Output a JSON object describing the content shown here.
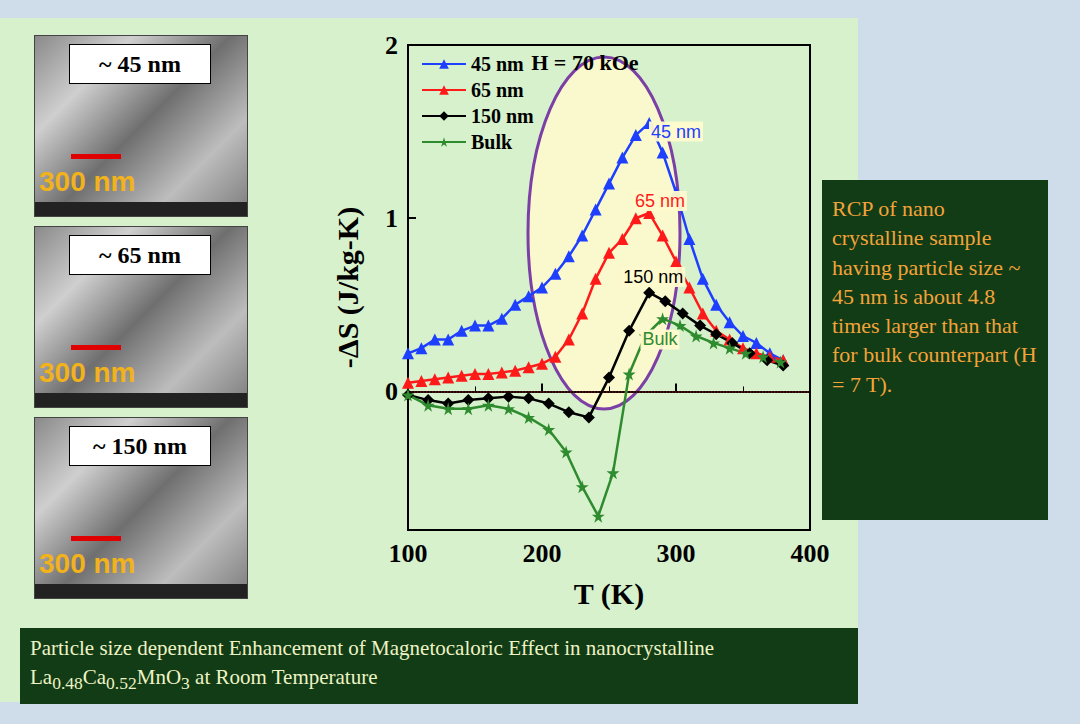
{
  "chart_data": {
    "type": "line",
    "xlabel": "T (K)",
    "ylabel": "-ΔS (J/kg-K)",
    "xlim": [
      100,
      400
    ],
    "xticks": [
      100,
      200,
      300,
      400
    ],
    "ylim": [
      -0.8,
      2
    ],
    "yticks": [
      0,
      1,
      2
    ],
    "grid": false,
    "legend": "top-left",
    "reference_line": {
      "y": 0,
      "line_style": "dotted"
    },
    "annotations": [
      {
        "text": "H = 70 kOe",
        "x": 232,
        "y": 1.9,
        "color": "#000000"
      },
      {
        "text": "45 nm",
        "x": 300,
        "y": 1.5,
        "color": "#1f3fff"
      },
      {
        "text": "65 nm",
        "x": 288,
        "y": 1.1,
        "color": "#ff1a1a"
      },
      {
        "text": "150 nm",
        "x": 283,
        "y": 0.66,
        "color": "#000000"
      },
      {
        "text": "Bulk",
        "x": 288,
        "y": 0.3,
        "color": "#2e8b2e"
      }
    ],
    "series": [
      {
        "name": "45 nm",
        "color": "#1f3fff",
        "marker": "triangle",
        "line_style": "solid",
        "x": [
          100,
          110,
          120,
          130,
          140,
          150,
          160,
          170,
          180,
          190,
          200,
          210,
          220,
          230,
          240,
          250,
          260,
          270,
          280,
          290,
          300,
          310,
          320,
          330,
          340,
          350,
          360,
          370,
          380
        ],
        "values": [
          0.22,
          0.25,
          0.3,
          0.3,
          0.35,
          0.38,
          0.38,
          0.42,
          0.5,
          0.55,
          0.6,
          0.68,
          0.78,
          0.9,
          1.05,
          1.2,
          1.35,
          1.48,
          1.55,
          1.38,
          1.15,
          0.88,
          0.65,
          0.5,
          0.4,
          0.32,
          0.28,
          0.22,
          0.18
        ]
      },
      {
        "name": "65 nm",
        "color": "#ff1a1a",
        "marker": "triangle",
        "line_style": "solid",
        "x": [
          100,
          110,
          120,
          130,
          140,
          150,
          160,
          170,
          180,
          190,
          200,
          210,
          220,
          230,
          240,
          250,
          260,
          270,
          280,
          290,
          300,
          310,
          320,
          330,
          340,
          350,
          360,
          370,
          380
        ],
        "values": [
          0.05,
          0.06,
          0.07,
          0.08,
          0.09,
          0.1,
          0.1,
          0.11,
          0.12,
          0.14,
          0.16,
          0.2,
          0.3,
          0.45,
          0.65,
          0.8,
          0.88,
          1.0,
          1.03,
          0.9,
          0.75,
          0.6,
          0.45,
          0.35,
          0.3,
          0.25,
          0.22,
          0.2,
          0.18
        ]
      },
      {
        "name": "150 nm",
        "color": "#000000",
        "marker": "diamond",
        "line_style": "solid",
        "x": [
          100,
          115,
          130,
          145,
          160,
          175,
          190,
          205,
          220,
          235,
          250,
          265,
          280,
          292,
          305,
          318,
          330,
          342,
          355,
          368,
          380
        ],
        "values": [
          -0.02,
          -0.05,
          -0.07,
          -0.05,
          -0.04,
          -0.03,
          -0.04,
          -0.07,
          -0.12,
          -0.15,
          0.08,
          0.35,
          0.57,
          0.52,
          0.45,
          0.38,
          0.33,
          0.28,
          0.22,
          0.18,
          0.15
        ]
      },
      {
        "name": "Bulk",
        "color": "#2e8b2e",
        "marker": "star",
        "line_style": "solid",
        "x": [
          100,
          115,
          130,
          145,
          160,
          175,
          190,
          205,
          218,
          230,
          242,
          253,
          265,
          277,
          290,
          303,
          315,
          328,
          340,
          352,
          365,
          378
        ],
        "values": [
          -0.02,
          -0.08,
          -0.1,
          -0.1,
          -0.08,
          -0.1,
          -0.15,
          -0.22,
          -0.35,
          -0.55,
          -0.72,
          -0.47,
          0.1,
          0.32,
          0.42,
          0.38,
          0.32,
          0.28,
          0.25,
          0.22,
          0.2,
          0.17
        ]
      }
    ]
  },
  "sem_panels": [
    {
      "label": "~ 45 nm",
      "scale_bar": "300 nm"
    },
    {
      "label": "~ 65 nm",
      "scale_bar": "300 nm"
    },
    {
      "label": "~ 150 nm",
      "scale_bar": "300 nm"
    }
  ],
  "note": "RCP of nano crystalline sample having particle size ~ 45 nm is about 4.8 times larger than that for bulk counterpart (H = 7 T).",
  "caption": "Particle size dependent Enhancement of Magnetocaloric Effect in nanocrystalline La0.48Ca0.52MnO3 at Room Temperature"
}
